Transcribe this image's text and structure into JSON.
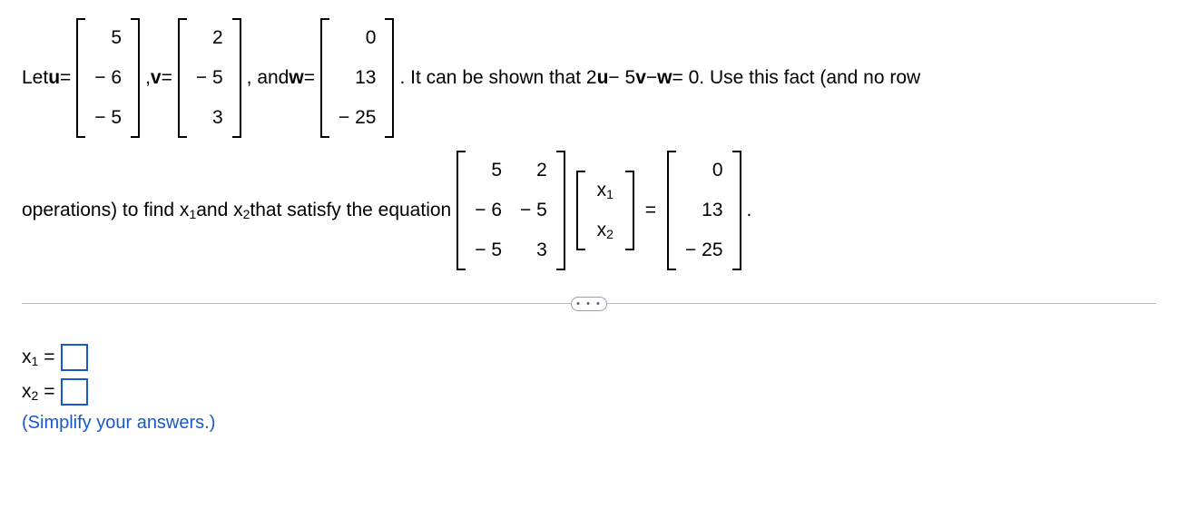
{
  "text": {
    "let": "Let ",
    "u_eq": " = ",
    "comma_v": ", ",
    "v_eq": " = ",
    "and_w": ", and ",
    "w_eq": " = ",
    "sentence1": ". It can be shown that 2",
    "sentence1_mid1": " − 5",
    "sentence1_mid2": " − ",
    "sentence1_end": " = 0. Use this fact (and no row",
    "sentence2_a": "operations) to find x",
    "sentence2_b": " and x",
    "sentence2_c": " that satisfy the equation ",
    "period": ".",
    "x1_label_a": "x",
    "x1_label_b": " = ",
    "x2_label_a": "x",
    "x2_label_b": " = ",
    "hint": "(Simplify your answers.)",
    "pill": "• • •",
    "u": "u",
    "v": "v",
    "w": "w",
    "sub1": "1",
    "sub2": "2",
    "eq_sign": " = "
  },
  "vectors": {
    "u": [
      "5",
      "− 6",
      "− 5"
    ],
    "v": [
      "2",
      "− 5",
      "3"
    ],
    "w": [
      "0",
      "13",
      "− 25"
    ]
  },
  "matrix_eq": {
    "A": [
      [
        "5",
        "2"
      ],
      [
        "− 6",
        "− 5"
      ],
      [
        "− 5",
        "3"
      ]
    ],
    "xvec": [
      "x1",
      "x2"
    ],
    "rhs": [
      "0",
      "13",
      "− 25"
    ]
  },
  "style": {
    "hint_color": "#1859c7",
    "input_border": "#1859c7",
    "sep_color": "#bbbbbb",
    "pill_border": "#9aa0b4"
  }
}
